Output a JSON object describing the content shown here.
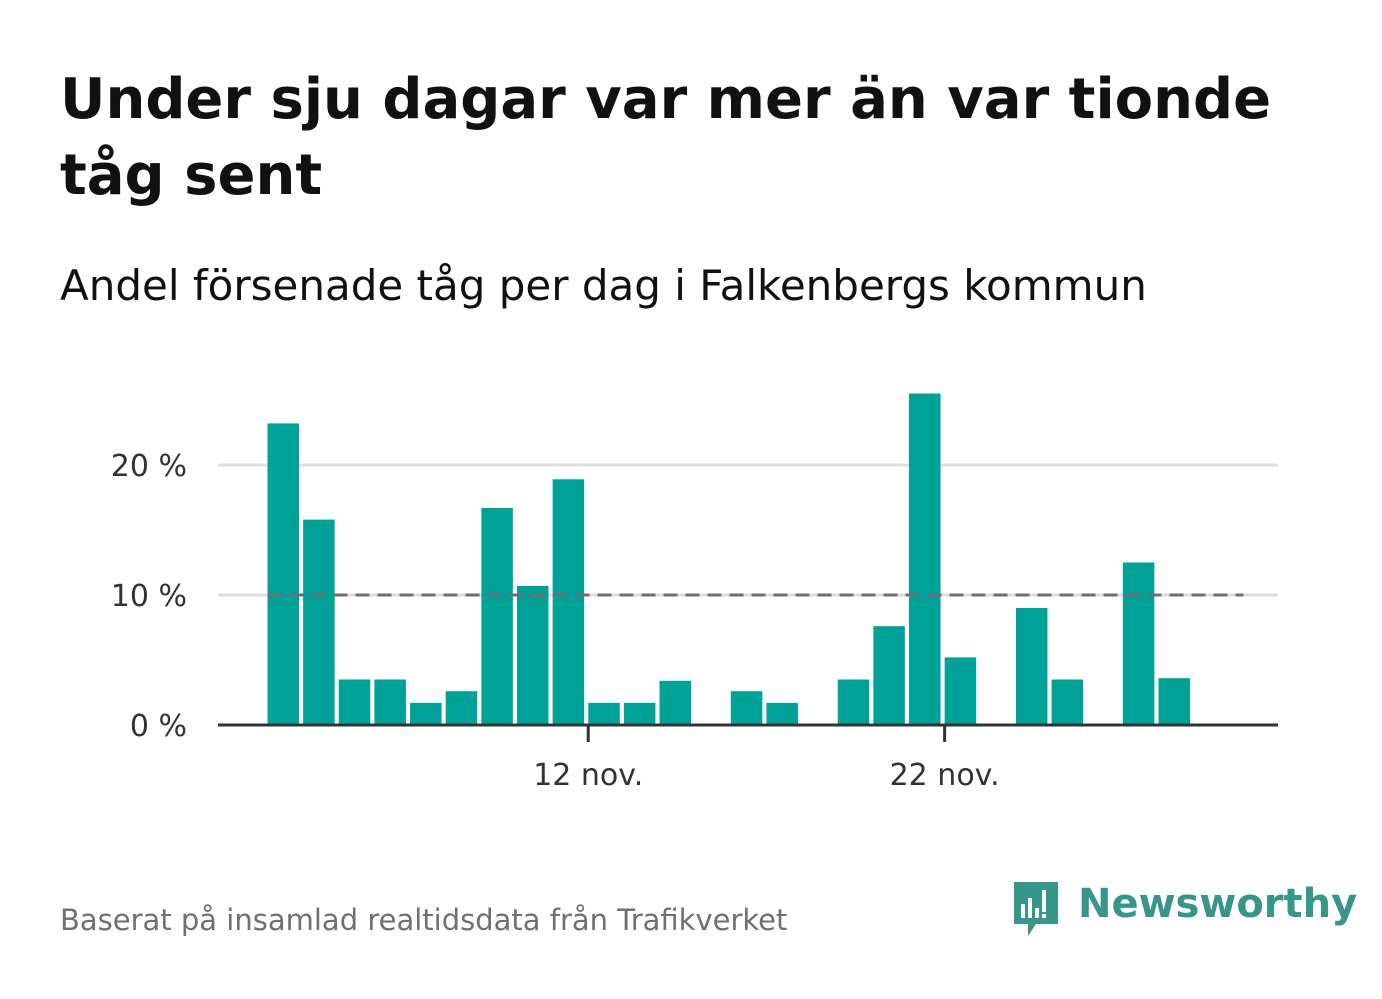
{
  "title": "Under sju dagar var mer än var tionde tåg sent",
  "subtitle": "Andel försenade tåg per dag i Falkenbergs kommun",
  "source": "Baserat på insamlad realtidsdata från Trafikverket",
  "logo": {
    "text": "Newsworthy",
    "icon": "newsworthy-logo-icon",
    "color": "#36968a"
  },
  "colors": {
    "bar": "#00a298",
    "grid": "#dddddd",
    "axis": "#333333",
    "reference": "#6e6e76",
    "tick_text": "#333333"
  },
  "chart_data": {
    "type": "bar",
    "x_is_dates": true,
    "x": [
      "2 nov.",
      "3 nov.",
      "4 nov.",
      "5 nov.",
      "6 nov.",
      "7 nov.",
      "8 nov.",
      "9 nov.",
      "10 nov.",
      "11 nov.",
      "12 nov.",
      "13 nov.",
      "14 nov.",
      "15 nov.",
      "16 nov.",
      "17 nov.",
      "18 nov.",
      "19 nov.",
      "20 nov.",
      "21 nov.",
      "22 nov.",
      "23 nov.",
      "24 nov.",
      "25 nov.",
      "26 nov.",
      "27 nov.",
      "28 nov.",
      "29 nov."
    ],
    "values": [
      23.2,
      15.8,
      3.5,
      3.5,
      1.7,
      2.6,
      16.7,
      10.7,
      18.9,
      1.7,
      1.7,
      3.4,
      null,
      2.6,
      1.7,
      null,
      3.5,
      7.6,
      25.5,
      5.2,
      null,
      9.0,
      3.5,
      null,
      12.5,
      3.6,
      null,
      null
    ],
    "xticks": [
      {
        "label": "12 nov.",
        "index": 8.5
      },
      {
        "label": "22 nov.",
        "index": 18.5
      }
    ],
    "yticks": [
      {
        "value": 0,
        "label": "0 %"
      },
      {
        "value": 10,
        "label": "10 %"
      },
      {
        "value": 20,
        "label": "20 %"
      }
    ],
    "ylim": [
      0,
      27
    ],
    "reference_line": {
      "value": 10,
      "style": "dashed",
      "from_index": 0,
      "to_index": 26.5
    },
    "grid": true,
    "legend": "none",
    "xlabel": "",
    "ylabel": ""
  }
}
